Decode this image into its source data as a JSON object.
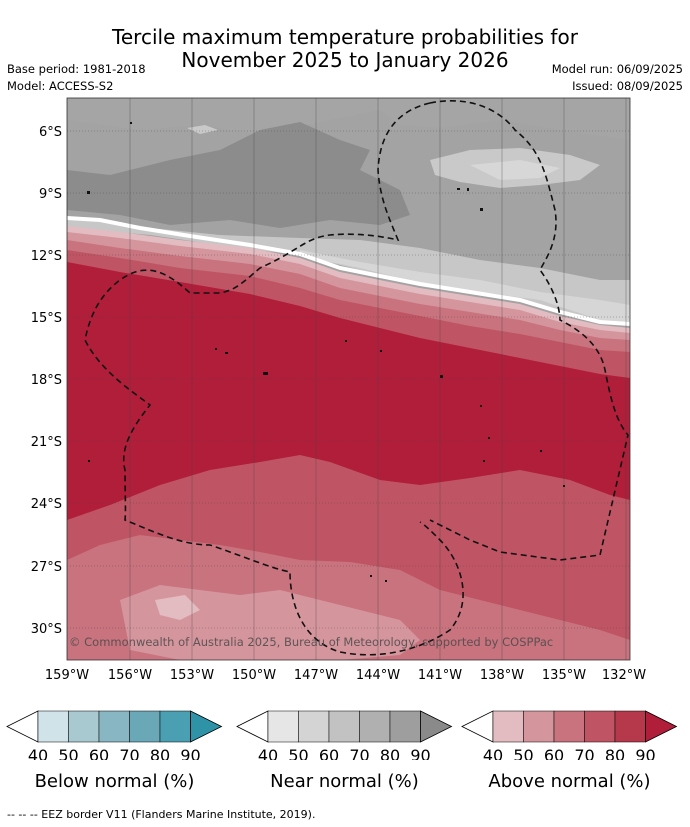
{
  "title": {
    "line1": "Tercile maximum temperature probabilities for",
    "line2": "November 2025 to January 2026"
  },
  "meta": {
    "base_period": "Base period: 1981-2018",
    "model": "Model: ACCESS-S2",
    "model_run": "Model run: 06/09/2025",
    "issued": "Issued: 08/09/2025"
  },
  "map": {
    "lat_labels": [
      "6°S",
      "9°S",
      "12°S",
      "15°S",
      "18°S",
      "21°S",
      "24°S",
      "27°S",
      "30°S"
    ],
    "lon_labels": [
      "159°W",
      "156°W",
      "153°W",
      "150°W",
      "147°W",
      "144°W",
      "141°W",
      "138°W",
      "135°W",
      "132°W"
    ],
    "copyright": "© Commonwealth of Australia 2025, Bureau of Meteorology, supported by COSPPac"
  },
  "legends": [
    {
      "label": "Below normal (%)",
      "ticks": [
        "40",
        "50",
        "60",
        "70",
        "80",
        "90"
      ],
      "colors": [
        "#ffffff",
        "#cfe3e8",
        "#a9c9d1",
        "#88b6c2",
        "#6aa7b7",
        "#4aa0b2",
        "#2f93a8"
      ]
    },
    {
      "label": "Near normal (%)",
      "ticks": [
        "40",
        "50",
        "60",
        "70",
        "80",
        "90"
      ],
      "colors": [
        "#ffffff",
        "#e6e6e6",
        "#d4d4d4",
        "#c2c2c2",
        "#b0b0b0",
        "#9e9e9e",
        "#8a8a8a"
      ]
    },
    {
      "label": "Above normal (%)",
      "ticks": [
        "40",
        "50",
        "60",
        "70",
        "80",
        "90"
      ],
      "colors": [
        "#ffffff",
        "#e2bcc1",
        "#d5959d",
        "#c8737e",
        "#bf5564",
        "#b5384b",
        "#b01e3a"
      ]
    }
  ],
  "footer": "--  --  -- EEZ border V11 (Flanders Marine Institute, 2019)."
}
